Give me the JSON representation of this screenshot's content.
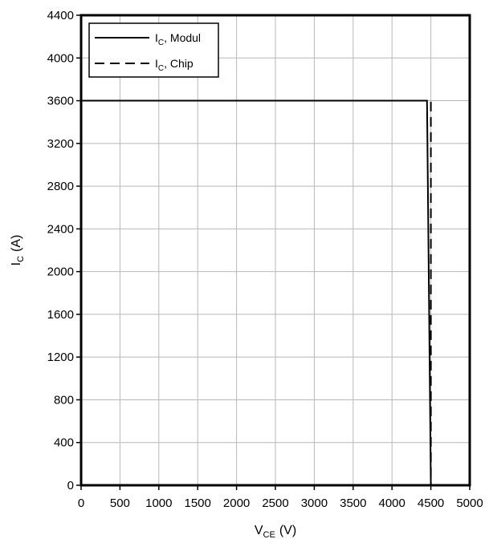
{
  "chart_data": {
    "type": "line",
    "xlim": [
      0,
      5000
    ],
    "ylim": [
      0,
      4400
    ],
    "x_ticks": [
      "0",
      "500",
      "1000",
      "1500",
      "2000",
      "2500",
      "3000",
      "3500",
      "4000",
      "4500",
      "5000"
    ],
    "y_ticks": [
      "0",
      "400",
      "800",
      "1200",
      "1600",
      "2000",
      "2400",
      "2800",
      "3200",
      "3600",
      "4000",
      "4400"
    ],
    "xlabel": {
      "main": "V",
      "sub": "CE",
      "unit": "(V)"
    },
    "ylabel": {
      "main": "I",
      "sub": "C",
      "unit": "(A)"
    },
    "grid": true,
    "legend_position": "top-left",
    "series": [
      {
        "name_main": "I",
        "name_sub": "C",
        "name_rest": ", Modul",
        "style": "solid",
        "points": [
          [
            0,
            3600
          ],
          [
            4450,
            3600
          ],
          [
            4500,
            0
          ]
        ]
      },
      {
        "name_main": "I",
        "name_sub": "C",
        "name_rest": ", Chip",
        "style": "dashed",
        "points": [
          [
            0,
            3600
          ],
          [
            4500,
            3600
          ],
          [
            4500,
            0
          ]
        ]
      }
    ],
    "colors": {
      "line": "#000000",
      "grid": "#b8b8b8"
    }
  }
}
